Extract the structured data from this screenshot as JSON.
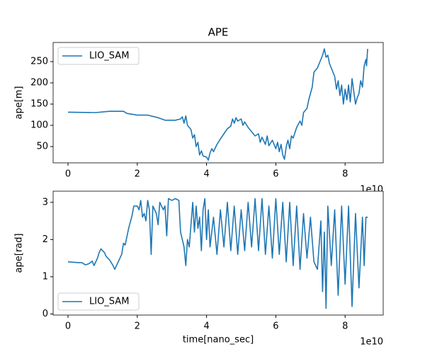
{
  "chart_data": [
    {
      "type": "line",
      "title": "APE",
      "ylabel": "ape[m]",
      "x_offset_label": "1e10",
      "legend": "upper left",
      "xlim": [
        -0.43,
        9.1
      ],
      "ylim": [
        11.7,
        295
      ],
      "xticks": [
        0,
        2,
        4,
        6,
        8
      ],
      "yticks": [
        50,
        100,
        150,
        200,
        250
      ],
      "x": [
        0,
        0.8,
        1.2,
        1.6,
        1.7,
        2,
        2.3,
        2.6,
        2.8,
        3.1,
        3.25,
        3.3,
        3.35,
        3.4,
        3.45,
        3.55,
        3.6,
        3.65,
        3.7,
        3.75,
        3.8,
        3.85,
        3.9,
        4.0,
        4.05,
        4.1,
        4.15,
        4.2,
        4.3,
        4.4,
        4.5,
        4.6,
        4.7,
        4.75,
        4.8,
        4.85,
        4.9,
        5.0,
        5.05,
        5.1,
        5.2,
        5.3,
        5.4,
        5.5,
        5.55,
        5.6,
        5.7,
        5.75,
        5.8,
        5.9,
        6.0,
        6.05,
        6.1,
        6.15,
        6.2,
        6.25,
        6.3,
        6.35,
        6.4,
        6.45,
        6.5,
        6.6,
        6.7,
        6.75,
        6.8,
        6.9,
        6.95,
        7.0,
        7.05,
        7.1,
        7.2,
        7.3,
        7.35,
        7.4,
        7.45,
        7.5,
        7.55,
        7.6,
        7.7,
        7.75,
        7.8,
        7.85,
        7.9,
        7.95,
        8.0,
        8.05,
        8.1,
        8.15,
        8.2,
        8.25,
        8.3,
        8.35,
        8.4,
        8.45,
        8.5,
        8.55,
        8.6,
        8.62,
        8.65
      ],
      "series": [
        {
          "name": "LIO_SAM",
          "color": "#1f77b4",
          "values": [
            131,
            130,
            133,
            133,
            128,
            124,
            124,
            118,
            112,
            112,
            115,
            120,
            105,
            122,
            100,
            90,
            70,
            78,
            50,
            60,
            30,
            40,
            28,
            25,
            18,
            35,
            45,
            38,
            55,
            68,
            80,
            92,
            98,
            115,
            105,
            118,
            110,
            115,
            100,
            108,
            95,
            85,
            75,
            80,
            60,
            72,
            55,
            75,
            52,
            65,
            45,
            60,
            38,
            55,
            30,
            20,
            50,
            65,
            45,
            75,
            70,
            95,
            110,
            100,
            130,
            140,
            160,
            175,
            190,
            225,
            235,
            255,
            265,
            280,
            260,
            265,
            245,
            235,
            215,
            185,
            205,
            170,
            195,
            150,
            185,
            160,
            195,
            155,
            210,
            180,
            150,
            165,
            175,
            205,
            190,
            240,
            255,
            240,
            280
          ]
        }
      ]
    },
    {
      "type": "line",
      "xlabel": "time[nano_sec]",
      "ylabel": "ape[rad]",
      "x_offset_label": "1e10",
      "legend": "lower left",
      "xlim": [
        -0.43,
        9.1
      ],
      "ylim": [
        -0.03,
        3.3
      ],
      "xticks": [
        0,
        2,
        4,
        6,
        8
      ],
      "yticks": [
        0,
        1,
        2,
        3
      ],
      "x": [
        0,
        0.3,
        0.4,
        0.5,
        0.6,
        0.7,
        0.75,
        0.85,
        0.9,
        0.95,
        1.05,
        1.1,
        1.2,
        1.3,
        1.35,
        1.45,
        1.55,
        1.6,
        1.65,
        1.75,
        1.85,
        1.9,
        2.0,
        2.05,
        2.1,
        2.15,
        2.2,
        2.25,
        2.3,
        2.35,
        2.4,
        2.45,
        2.55,
        2.6,
        2.65,
        2.75,
        2.8,
        2.85,
        2.9,
        3.0,
        3.1,
        3.2,
        3.25,
        3.3,
        3.35,
        3.4,
        3.45,
        3.5,
        3.55,
        3.6,
        3.65,
        3.7,
        3.75,
        3.8,
        3.85,
        3.9,
        3.95,
        4.0,
        4.05,
        4.1,
        4.2,
        4.3,
        4.4,
        4.5,
        4.6,
        4.7,
        4.8,
        4.9,
        5.0,
        5.1,
        5.2,
        5.3,
        5.4,
        5.5,
        5.6,
        5.7,
        5.8,
        5.9,
        6.0,
        6.1,
        6.2,
        6.3,
        6.4,
        6.5,
        6.6,
        6.7,
        6.8,
        6.9,
        7.0,
        7.1,
        7.2,
        7.3,
        7.35,
        7.4,
        7.45,
        7.5,
        7.6,
        7.7,
        7.8,
        7.9,
        8.0,
        8.1,
        8.2,
        8.3,
        8.4,
        8.5,
        8.55,
        8.6,
        8.65
      ],
      "series": [
        {
          "name": "LIO_SAM",
          "color": "#1f77b4",
          "values": [
            1.4,
            1.38,
            1.38,
            1.32,
            1.35,
            1.42,
            1.3,
            1.5,
            1.65,
            1.75,
            1.65,
            1.55,
            1.45,
            1.3,
            1.2,
            1.4,
            1.6,
            1.9,
            1.85,
            2.3,
            2.65,
            2.9,
            2.9,
            2.8,
            3.05,
            2.6,
            2.7,
            2.5,
            3.05,
            2.8,
            1.6,
            2.9,
            2.7,
            2.4,
            3.0,
            2.8,
            2.9,
            2.1,
            3.1,
            3.05,
            3.1,
            3.05,
            2.2,
            2.0,
            1.8,
            1.3,
            2.0,
            1.8,
            2.4,
            3.0,
            2.2,
            2.9,
            2.3,
            2.6,
            1.7,
            2.8,
            3.1,
            2.0,
            2.8,
            1.8,
            2.6,
            1.6,
            2.8,
            1.8,
            3.0,
            1.7,
            2.9,
            1.6,
            2.8,
            1.7,
            3.0,
            1.8,
            3.1,
            1.7,
            3.1,
            1.6,
            2.9,
            1.5,
            3.1,
            1.6,
            3.0,
            1.4,
            3.0,
            1.3,
            2.9,
            1.2,
            2.7,
            1.5,
            2.6,
            1.4,
            1.2,
            2.5,
            0.6,
            2.2,
            0.15,
            2.9,
            1.3,
            2.8,
            0.5,
            2.9,
            0.8,
            2.9,
            0.2,
            2.7,
            0.7,
            2.6,
            1.3,
            2.6,
            2.6
          ]
        }
      ]
    }
  ]
}
